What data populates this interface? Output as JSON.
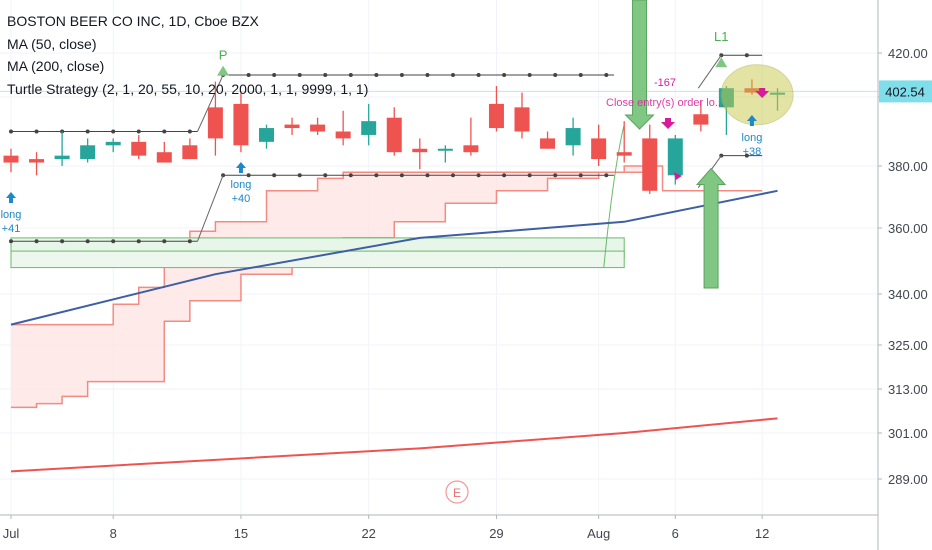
{
  "header": {
    "symbol_line": "BOSTON BEER CO INC, 1D, Cboe BZX",
    "indicators": [
      "MA (50, close)",
      "MA (200, close)",
      "Turtle Strategy (2, 1, 20, 55, 10, 20, 2000, 1, 1, 9999, 1, 1)"
    ]
  },
  "price_tag": "402.54",
  "colors": {
    "up": "#26a69a",
    "down": "#ef5350",
    "ma50": "#3d5fa3",
    "ma200": "#ef5350",
    "channel": "#f28b82",
    "channel_fill": "#fde4e2",
    "green_box": "#66bb6a",
    "arrow_green": "#81c784",
    "price_line": "#b2ebf2",
    "dotted": "#444444",
    "pink": "#d81b9a",
    "entry_blue": "#1e88c8",
    "highlight": "#c8c84a"
  },
  "chart_data": {
    "type": "candlestick",
    "title": "BOSTON BEER CO INC, 1D, Cboe BZX",
    "x_ticks": [
      "Jul",
      "8",
      "15",
      "22",
      "29",
      "Aug",
      "6",
      "12"
    ],
    "y_ticks": [
      "420.00",
      "400.00",
      "380.00",
      "360.00",
      "340.00",
      "325.00",
      "313.00",
      "301.00",
      "289.00"
    ],
    "y_tick_values": [
      420,
      400,
      380,
      360,
      340,
      325,
      313,
      301,
      289
    ],
    "last_price": 402.54,
    "candles": [
      {
        "o": 383,
        "h": 385,
        "l": 378,
        "c": 381
      },
      {
        "o": 382,
        "h": 384,
        "l": 377,
        "c": 381
      },
      {
        "o": 382,
        "h": 390,
        "l": 380,
        "c": 383
      },
      {
        "o": 382,
        "h": 388,
        "l": 381,
        "c": 386
      },
      {
        "o": 386,
        "h": 388,
        "l": 384,
        "c": 387
      },
      {
        "o": 387,
        "h": 389,
        "l": 382,
        "c": 383
      },
      {
        "o": 384,
        "h": 387,
        "l": 381,
        "c": 381
      },
      {
        "o": 386,
        "h": 388,
        "l": 382,
        "c": 382
      },
      {
        "o": 397,
        "h": 407,
        "l": 383,
        "c": 388
      },
      {
        "o": 398,
        "h": 402,
        "l": 384,
        "c": 386
      },
      {
        "o": 387,
        "h": 392,
        "l": 385,
        "c": 391
      },
      {
        "o": 392,
        "h": 394,
        "l": 389,
        "c": 391
      },
      {
        "o": 392,
        "h": 394,
        "l": 389,
        "c": 390
      },
      {
        "o": 390,
        "h": 396,
        "l": 386,
        "c": 388
      },
      {
        "o": 389,
        "h": 398,
        "l": 386,
        "c": 393
      },
      {
        "o": 394,
        "h": 397,
        "l": 383,
        "c": 384
      },
      {
        "o": 385,
        "h": 388,
        "l": 379,
        "c": 384
      },
      {
        "o": 385,
        "h": 386,
        "l": 381,
        "c": 385
      },
      {
        "o": 386,
        "h": 394,
        "l": 383,
        "c": 384
      },
      {
        "o": 398,
        "h": 405,
        "l": 390,
        "c": 391
      },
      {
        "o": 397,
        "h": 402,
        "l": 388,
        "c": 390
      },
      {
        "o": 388,
        "h": 390,
        "l": 385,
        "c": 385
      },
      {
        "o": 386,
        "h": 394,
        "l": 383,
        "c": 391
      },
      {
        "o": 388,
        "h": 392,
        "l": 380,
        "c": 382
      },
      {
        "o": 384,
        "h": 393,
        "l": 381,
        "c": 383
      },
      {
        "o": 388,
        "h": 392,
        "l": 371,
        "c": 372
      },
      {
        "o": 377,
        "h": 389,
        "l": 374,
        "c": 388
      },
      {
        "o": 395,
        "h": 399,
        "l": 390,
        "c": 392
      },
      {
        "o": 397,
        "h": 405,
        "l": 389,
        "c": 404
      },
      {
        "o": 404,
        "h": 408,
        "l": 401,
        "c": 402
      },
      {
        "o": 401,
        "h": 404,
        "l": 396,
        "c": 402
      }
    ],
    "ma50": [
      {
        "d": 0,
        "v": 331
      },
      {
        "d": 8,
        "v": 346
      },
      {
        "d": 16,
        "v": 357
      },
      {
        "d": 24,
        "v": 362
      },
      {
        "d": 30,
        "v": 372
      }
    ],
    "ma200": [
      {
        "d": 0,
        "v": 291
      },
      {
        "d": 8,
        "v": 294
      },
      {
        "d": 16,
        "v": 297
      },
      {
        "d": 24,
        "v": 301
      },
      {
        "d": 30,
        "v": 305
      }
    ],
    "channel_upper": [
      {
        "d": 0,
        "v": 331
      },
      {
        "d": 3,
        "v": 331
      },
      {
        "d": 4,
        "v": 337
      },
      {
        "d": 5,
        "v": 342
      },
      {
        "d": 6,
        "v": 351
      },
      {
        "d": 7,
        "v": 359
      },
      {
        "d": 8,
        "v": 362
      },
      {
        "d": 10,
        "v": 372
      },
      {
        "d": 12,
        "v": 376
      },
      {
        "d": 13,
        "v": 378
      },
      {
        "d": 24,
        "v": 380
      },
      {
        "d": 25,
        "v": 380
      }
    ],
    "channel_lower": [
      {
        "d": 0,
        "v": 308
      },
      {
        "d": 1,
        "v": 309
      },
      {
        "d": 2,
        "v": 311
      },
      {
        "d": 3,
        "v": 315
      },
      {
        "d": 6,
        "v": 332
      },
      {
        "d": 7,
        "v": 338
      },
      {
        "d": 9,
        "v": 346
      },
      {
        "d": 11,
        "v": 350
      },
      {
        "d": 13,
        "v": 357
      },
      {
        "d": 15,
        "v": 362
      },
      {
        "d": 17,
        "v": 368
      },
      {
        "d": 19,
        "v": 372
      },
      {
        "d": 21,
        "v": 376
      },
      {
        "d": 23,
        "v": 378
      },
      {
        "d": 25,
        "v": 378
      }
    ],
    "dotted_levels": [
      {
        "from": 0,
        "to": 7.3,
        "v": 390
      },
      {
        "from": 0,
        "to": 7.3,
        "v": 356
      },
      {
        "from": 8.3,
        "to": 23.6,
        "v": 410
      },
      {
        "from": 8.3,
        "to": 23.6,
        "v": 377
      },
      {
        "from": 27.8,
        "to": 29.4,
        "v": 419
      },
      {
        "from": 27.8,
        "to": 29.4,
        "v": 383
      }
    ],
    "annotations": {
      "peak_label": "P",
      "l1_label": "L1",
      "earnings_label": "E",
      "entries": [
        {
          "label": "long",
          "amount": "+41",
          "d": 0
        },
        {
          "label": "long",
          "amount": "+40",
          "d": 9
        },
        {
          "label": "long",
          "amount": "+38",
          "d": 29
        }
      ],
      "exit_amount": "-167",
      "close_text": "Close entry(s) order lo..."
    }
  }
}
